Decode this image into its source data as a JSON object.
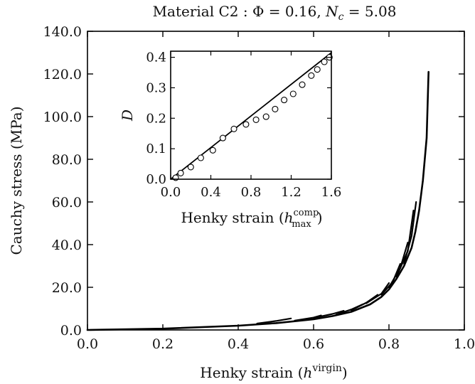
{
  "chart_data": [
    {
      "type": "line",
      "title": "Material C2 : Φ = 0.16, N_c = 5.08",
      "title_parts": {
        "prefix": "Material C2 : Φ = 0.16, ",
        "n_symbol": "N",
        "n_subscript": "c",
        "n_value": " = 5.08"
      },
      "xlabel": "Henky strain (h^virgin)",
      "xlabel_parts": {
        "text": "Henky strain (",
        "symbol": "h",
        "superscript": "virgin",
        "close": ")"
      },
      "ylabel": "Cauchy stress (MPa)",
      "xlim": [
        0.0,
        1.0
      ],
      "ylim": [
        0.0,
        140.0
      ],
      "x_ticks": [
        0.0,
        0.2,
        0.4,
        0.6,
        0.8,
        1.0
      ],
      "x_tick_labels": [
        "0.0",
        "0.2",
        "0.4",
        "0.6",
        "0.8",
        "1.0"
      ],
      "y_ticks": [
        0,
        20,
        40,
        60,
        80,
        100,
        120,
        140
      ],
      "y_tick_labels": [
        "0.0",
        "20.0",
        "40.0",
        "60.0",
        "80.0",
        "100.0",
        "120.0",
        "140.0"
      ],
      "grid": false,
      "legend": "none",
      "line_color": "#000000",
      "series": [
        {
          "x": [
            0.0,
            0.2,
            0.4,
            0.5,
            0.6,
            0.65,
            0.7,
            0.75,
            0.78,
            0.8,
            0.82,
            0.84,
            0.86,
            0.87,
            0.88,
            0.89,
            0.9,
            0.905
          ],
          "y": [
            0.0,
            0.6,
            2.0,
            3.2,
            5.0,
            6.5,
            8.5,
            12.0,
            15.5,
            19.0,
            24.0,
            30.0,
            38.5,
            46.0,
            56.0,
            70.0,
            90.0,
            121.0
          ]
        },
        {
          "x": [
            0.45,
            0.5,
            0.54
          ],
          "y": [
            3.0,
            4.2,
            5.4
          ]
        },
        {
          "x": [
            0.55,
            0.6,
            0.62
          ],
          "y": [
            4.4,
            5.8,
            6.8
          ]
        },
        {
          "x": [
            0.6,
            0.65,
            0.68
          ],
          "y": [
            5.6,
            7.5,
            9.0
          ]
        },
        {
          "x": [
            0.66,
            0.7,
            0.73
          ],
          "y": [
            7.2,
            9.6,
            12.0
          ]
        },
        {
          "x": [
            0.7,
            0.74,
            0.77
          ],
          "y": [
            9.2,
            12.8,
            16.5
          ]
        },
        {
          "x": [
            0.74,
            0.78,
            0.8
          ],
          "y": [
            12.5,
            17.0,
            22.0
          ]
        },
        {
          "x": [
            0.78,
            0.81,
            0.83
          ],
          "y": [
            16.5,
            22.5,
            31.0
          ]
        },
        {
          "x": [
            0.8,
            0.83,
            0.85
          ],
          "y": [
            20.0,
            29.0,
            41.0
          ]
        },
        {
          "x": [
            0.82,
            0.85,
            0.865
          ],
          "y": [
            25.0,
            37.0,
            56.0
          ]
        },
        {
          "x": [
            0.84,
            0.86,
            0.872
          ],
          "y": [
            31.0,
            44.0,
            60.0
          ]
        }
      ]
    },
    {
      "type": "scatter",
      "xlabel": "Henky strain (h_max^comp)",
      "xlabel_parts": {
        "text": "Henky strain (",
        "symbol": "h",
        "subscript": "max",
        "superscript": "comp",
        "close": ")"
      },
      "ylabel": "D",
      "xlim": [
        0.0,
        1.6
      ],
      "ylim": [
        0.0,
        0.42
      ],
      "x_ticks": [
        0.0,
        0.4,
        0.8,
        1.2,
        1.6
      ],
      "x_tick_labels": [
        "0.0",
        "0.4",
        "0.8",
        "1.2",
        "1.6"
      ],
      "y_ticks": [
        0.0,
        0.1,
        0.2,
        0.3,
        0.4
      ],
      "y_tick_labels": [
        "0.0",
        "0.1",
        "0.2",
        "0.3",
        "0.4"
      ],
      "grid": false,
      "legend": "none",
      "points": {
        "x": [
          0.05,
          0.1,
          0.2,
          0.3,
          0.42,
          0.52,
          0.63,
          0.75,
          0.85,
          0.95,
          1.04,
          1.13,
          1.22,
          1.31,
          1.4,
          1.46,
          1.53,
          1.58
        ],
        "y": [
          0.005,
          0.02,
          0.04,
          0.07,
          0.095,
          0.135,
          0.165,
          0.18,
          0.195,
          0.205,
          0.23,
          0.26,
          0.28,
          0.31,
          0.34,
          0.36,
          0.385,
          0.4
        ]
      },
      "fit_line": {
        "x": [
          0.0,
          1.6
        ],
        "y": [
          0.0,
          0.415
        ]
      }
    }
  ]
}
